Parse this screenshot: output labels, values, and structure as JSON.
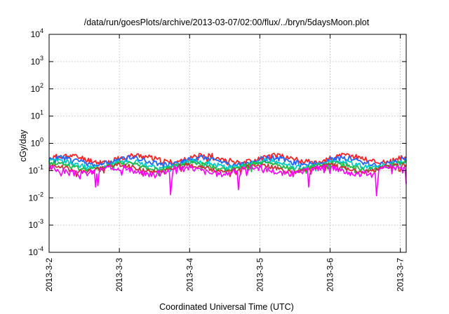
{
  "chart_data": {
    "type": "line",
    "title": "/data/run/goesPlots/archive/2013-03-07/02:00/flux/../bryn/5daysMoon.plot",
    "xlabel": "Coordinated Universal Time (UTC)",
    "ylabel": "cGy/day",
    "y_scale": "log",
    "ylim": [
      0.0001,
      10000
    ],
    "y_ticks": [
      {
        "value": 0.0001,
        "base": "10",
        "exp": "-4"
      },
      {
        "value": 0.001,
        "base": "10",
        "exp": "-3"
      },
      {
        "value": 0.01,
        "base": "10",
        "exp": "-2"
      },
      {
        "value": 0.1,
        "base": "10",
        "exp": "-1"
      },
      {
        "value": 1,
        "base": "10",
        "exp": "0"
      },
      {
        "value": 10,
        "base": "10",
        "exp": "1"
      },
      {
        "value": 100,
        "base": "10",
        "exp": "2"
      },
      {
        "value": 1000,
        "base": "10",
        "exp": "3"
      },
      {
        "value": 10000,
        "base": "10",
        "exp": "4"
      }
    ],
    "xlim": [
      "2013-03-02 00:00",
      "2013-03-07 02:00"
    ],
    "x_ticks": [
      {
        "value": "2013-03-02 00:00",
        "label": "2013-3-2"
      },
      {
        "value": "2013-03-03 00:00",
        "label": "2013-3-3"
      },
      {
        "value": "2013-03-04 00:00",
        "label": "2013-3-4"
      },
      {
        "value": "2013-03-05 00:00",
        "label": "2013-3-5"
      },
      {
        "value": "2013-03-06 00:00",
        "label": "2013-3-6"
      },
      {
        "value": "2013-03-07 00:00",
        "label": "2013-3-7"
      }
    ],
    "grid": true,
    "legend": "none",
    "x_sample_times": [
      "2013-03-02 00:00",
      "2013-03-07 02:00"
    ],
    "series": [
      {
        "color": "#ff2222",
        "level": 0.27,
        "dips": [],
        "noise": 0.2,
        "seed": 11
      },
      {
        "color": "#2266ff",
        "level": 0.22,
        "dips": [],
        "noise": 0.2,
        "seed": 23
      },
      {
        "color": "#00cccc",
        "level": 0.17,
        "dips": [],
        "noise": 0.18,
        "seed": 37
      },
      {
        "color": "#22bb44",
        "level": 0.145,
        "dips": [],
        "noise": 0.16,
        "seed": 41
      },
      {
        "color": "#cc3333",
        "level": 0.12,
        "dips": [],
        "noise": 0.15,
        "seed": 53
      },
      {
        "color": "#ff00ff",
        "level": 0.1,
        "noise": 0.22,
        "seed": 67,
        "dips": [
          {
            "t": "2013-03-02 15:40",
            "v": 0.025
          },
          {
            "t": "2013-03-02 16:30",
            "v": 0.028
          },
          {
            "t": "2013-03-03 17:30",
            "v": 0.013
          },
          {
            "t": "2013-03-04 16:40",
            "v": 0.02
          },
          {
            "t": "2013-03-05 16:50",
            "v": 0.025
          },
          {
            "t": "2013-03-06 16:00",
            "v": 0.012
          },
          {
            "t": "2013-03-07 02:00",
            "v": 0.032
          }
        ]
      }
    ]
  }
}
